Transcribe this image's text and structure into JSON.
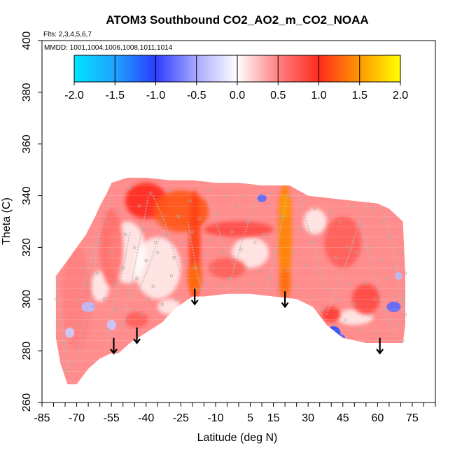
{
  "chart_data": {
    "type": "heatmap",
    "title": "ATOM3 Southbound CO2_AO2_m_CO2_NOAA",
    "subtitle_flights": "Flts: 2,3,4,5,6,7",
    "subtitle_dates": "MMDD: 1001,1004,1006,1008,1011,1014",
    "xlabel": "Latitude (deg N)",
    "ylabel": "Theta (C)",
    "xlim": [
      -85,
      85
    ],
    "ylim": [
      260,
      400
    ],
    "xticks": [
      -85,
      -70,
      -55,
      -40,
      -25,
      -10,
      5,
      15,
      30,
      45,
      60,
      75
    ],
    "xticks_minor": [
      -80,
      -75,
      -65,
      -60,
      -50,
      -45,
      -35,
      -30,
      -20,
      -15,
      -5,
      0,
      10,
      20,
      25,
      35,
      40,
      50,
      55,
      65,
      70,
      80,
      85
    ],
    "yticks": [
      260,
      280,
      300,
      320,
      340,
      360,
      380,
      400
    ],
    "colorbar": {
      "min": -2.0,
      "max": 2.0,
      "tick_labels": [
        "-2.0",
        "-1.5",
        "-1.0",
        "-0.5",
        "0.0",
        "0.5",
        "1.0",
        "1.5",
        "2.0"
      ],
      "tick_values": [
        -2.0,
        -1.5,
        -1.0,
        -0.5,
        0.0,
        0.5,
        1.0,
        1.5,
        2.0
      ],
      "color_stops": [
        {
          "v": -2.0,
          "c": "#00e5ff"
        },
        {
          "v": -1.5,
          "c": "#1fa2ff"
        },
        {
          "v": -1.0,
          "c": "#2a3cff"
        },
        {
          "v": -0.5,
          "c": "#a9a9ff"
        },
        {
          "v": 0.0,
          "c": "#ffffff"
        },
        {
          "v": 0.5,
          "c": "#ff8080"
        },
        {
          "v": 1.0,
          "c": "#ff2a1e"
        },
        {
          "v": 1.5,
          "c": "#ff9a00"
        },
        {
          "v": 2.0,
          "c": "#ffff00"
        }
      ]
    },
    "domain_outline": [
      [
        -79,
        309
      ],
      [
        -74,
        315
      ],
      [
        -70,
        320
      ],
      [
        -66,
        325
      ],
      [
        -62,
        332
      ],
      [
        -60,
        336
      ],
      [
        -57,
        341
      ],
      [
        -55,
        345
      ],
      [
        -48,
        347
      ],
      [
        -40,
        347
      ],
      [
        -30,
        346
      ],
      [
        -20,
        346
      ],
      [
        -10,
        345
      ],
      [
        0,
        345
      ],
      [
        10,
        344
      ],
      [
        22,
        344
      ],
      [
        30,
        340
      ],
      [
        40,
        339
      ],
      [
        50,
        338
      ],
      [
        60,
        337
      ],
      [
        65,
        335
      ],
      [
        71,
        330
      ],
      [
        72,
        310
      ],
      [
        72,
        290
      ],
      [
        71,
        283
      ],
      [
        62,
        283
      ],
      [
        55,
        283
      ],
      [
        45,
        285
      ],
      [
        38,
        290
      ],
      [
        32,
        297
      ],
      [
        25,
        300
      ],
      [
        15,
        301
      ],
      [
        5,
        302
      ],
      [
        -5,
        302
      ],
      [
        -15,
        301
      ],
      [
        -20,
        301
      ],
      [
        -28,
        296
      ],
      [
        -33,
        291
      ],
      [
        -40,
        287
      ],
      [
        -47,
        283
      ],
      [
        -52,
        279
      ],
      [
        -55,
        279
      ],
      [
        -60,
        277
      ],
      [
        -65,
        273
      ],
      [
        -70,
        267
      ],
      [
        -74,
        267
      ],
      [
        -77,
        275
      ],
      [
        -79,
        285
      ]
    ],
    "enhancements": [
      {
        "lat": -40,
        "theta": 338,
        "dlat": 9,
        "dtheta": 7,
        "value": 1.0
      },
      {
        "lat": -25,
        "theta": 334,
        "dlat": 12,
        "dtheta": 8,
        "value": 1.2
      },
      {
        "lat": -19,
        "theta": 320,
        "dlat": 2.5,
        "dtheta": 22,
        "value": 1.1
      },
      {
        "lat": -19,
        "theta": 308,
        "dlat": 3,
        "dtheta": 6,
        "value": 1.3
      },
      {
        "lat": 20,
        "theta": 325,
        "dlat": 3,
        "dtheta": 20,
        "value": 1.4
      },
      {
        "lat": 20,
        "theta": 336,
        "dlat": 2,
        "dtheta": 5,
        "value": 1.5
      },
      {
        "lat": 20,
        "theta": 306,
        "dlat": 2.5,
        "dtheta": 6,
        "value": 1.3
      },
      {
        "lat": 0,
        "theta": 327,
        "dlat": 15,
        "dtheta": 3,
        "value": 0.8
      },
      {
        "lat": 45,
        "theta": 322,
        "dlat": 8,
        "dtheta": 10,
        "value": 0.7
      },
      {
        "lat": -55,
        "theta": 320,
        "dlat": 5,
        "dtheta": 15,
        "value": 0.6
      },
      {
        "lat": -70,
        "theta": 300,
        "dlat": 6,
        "dtheta": 20,
        "value": 0.5
      },
      {
        "lat": 40,
        "theta": 294,
        "dlat": 4,
        "dtheta": 3,
        "value": 0.9
      },
      {
        "lat": 55,
        "theta": 300,
        "dlat": 6,
        "dtheta": 6,
        "value": 0.8
      },
      {
        "lat": -5,
        "theta": 312,
        "dlat": 8,
        "dtheta": 4,
        "value": 0.7
      },
      {
        "lat": -44,
        "theta": 292,
        "dlat": 5,
        "dtheta": 3,
        "value": 0.7
      }
    ],
    "depletions": [
      {
        "lat": 41,
        "theta": 287,
        "dlat": 3,
        "dtheta": 2.5,
        "value": -1.1
      },
      {
        "lat": 44,
        "theta": 285,
        "dlat": 2,
        "dtheta": 1.5,
        "value": -0.8
      },
      {
        "lat": 67,
        "theta": 297,
        "dlat": 3,
        "dtheta": 2,
        "value": -0.8
      },
      {
        "lat": 69,
        "theta": 309,
        "dlat": 1.5,
        "dtheta": 1.5,
        "value": -0.4
      },
      {
        "lat": 10,
        "theta": 339,
        "dlat": 2,
        "dtheta": 1.5,
        "value": -0.8
      },
      {
        "lat": 56,
        "theta": 339,
        "dlat": 2,
        "dtheta": 1.5,
        "value": -0.6
      },
      {
        "lat": -65,
        "theta": 297,
        "dlat": 3,
        "dtheta": 2,
        "value": -0.4
      },
      {
        "lat": -73,
        "theta": 287,
        "dlat": 2,
        "dtheta": 2,
        "value": -0.3
      },
      {
        "lat": -55,
        "theta": 290,
        "dlat": 2,
        "dtheta": 2,
        "value": -0.3
      }
    ],
    "whitish": [
      {
        "lat": -48,
        "theta": 318,
        "dlat": 8,
        "dtheta": 12
      },
      {
        "lat": -35,
        "theta": 312,
        "dlat": 10,
        "dtheta": 12
      },
      {
        "lat": 5,
        "theta": 318,
        "dlat": 8,
        "dtheta": 6
      },
      {
        "lat": 33,
        "theta": 330,
        "dlat": 5,
        "dtheta": 5
      },
      {
        "lat": 50,
        "theta": 293,
        "dlat": 8,
        "dtheta": 3
      },
      {
        "lat": -60,
        "theta": 305,
        "dlat": 4,
        "dtheta": 6
      },
      {
        "lat": -30,
        "theta": 297,
        "dlat": 5,
        "dtheta": 3
      }
    ],
    "arrows": [
      {
        "lat": -54,
        "theta_top": 285,
        "theta_bottom": 279
      },
      {
        "lat": -44,
        "theta_top": 289,
        "theta_bottom": 283
      },
      {
        "lat": -19,
        "theta_top": 304,
        "theta_bottom": 298
      },
      {
        "lat": 20,
        "theta_top": 303,
        "theta_bottom": 297
      },
      {
        "lat": 61,
        "theta_top": 285,
        "theta_bottom": 279
      }
    ],
    "flight_tracks": [
      {
        "points": [
          [
            -79,
            309
          ],
          [
            -77,
            295
          ],
          [
            -75,
            281
          ],
          [
            -73,
            272
          ]
        ]
      },
      {
        "points": [
          [
            -70,
            277
          ],
          [
            -67,
            290
          ],
          [
            -64,
            302
          ],
          [
            -62,
            315
          ],
          [
            -60,
            326
          ]
        ]
      },
      {
        "points": [
          [
            -68,
            302
          ],
          [
            -65,
            312
          ],
          [
            -62,
            321
          ],
          [
            -58,
            331
          ],
          [
            -55,
            341
          ]
        ]
      },
      {
        "points": [
          [
            -57,
            283
          ],
          [
            -55,
            294
          ],
          [
            -52,
            305
          ],
          [
            -49,
            316
          ],
          [
            -47,
            326
          ]
        ]
      },
      {
        "points": [
          [
            -50,
            290
          ],
          [
            -47,
            303
          ],
          [
            -44,
            317
          ],
          [
            -41,
            330
          ],
          [
            -39,
            340
          ]
        ]
      },
      {
        "points": [
          [
            -45,
            300
          ],
          [
            -40,
            310
          ],
          [
            -36,
            320
          ],
          [
            -32,
            327
          ]
        ]
      },
      {
        "points": [
          [
            -37,
            340
          ],
          [
            -32,
            330
          ],
          [
            -28,
            318
          ],
          [
            -25,
            310
          ]
        ]
      },
      {
        "points": [
          [
            -22,
            330
          ],
          [
            -20,
            320
          ],
          [
            -18,
            310
          ],
          [
            -16,
            303
          ]
        ]
      },
      {
        "points": [
          [
            -14,
            340
          ],
          [
            -10,
            330
          ],
          [
            -6,
            320
          ],
          [
            -2,
            313
          ]
        ]
      },
      {
        "points": [
          [
            -5,
            303
          ],
          [
            0,
            318
          ],
          [
            5,
            332
          ],
          [
            9,
            342
          ]
        ]
      },
      {
        "points": [
          [
            12,
            303
          ],
          [
            15,
            315
          ],
          [
            18,
            327
          ],
          [
            21,
            341
          ]
        ]
      },
      {
        "points": [
          [
            26,
            340
          ],
          [
            30,
            328
          ],
          [
            34,
            316
          ],
          [
            37,
            304
          ]
        ]
      },
      {
        "points": [
          [
            38,
            294
          ],
          [
            43,
            306
          ],
          [
            48,
            318
          ],
          [
            52,
            330
          ],
          [
            56,
            338
          ]
        ]
      },
      {
        "points": [
          [
            52,
            330
          ],
          [
            56,
            318
          ],
          [
            60,
            305
          ],
          [
            64,
            293
          ],
          [
            68,
            285
          ]
        ]
      },
      {
        "points": [
          [
            62,
            336
          ],
          [
            66,
            322
          ],
          [
            69,
            308
          ],
          [
            71,
            295
          ]
        ]
      }
    ],
    "scatter_points": [
      [
        -79,
        300
      ],
      [
        -78,
        290
      ],
      [
        -76,
        283
      ],
      [
        -75,
        272
      ],
      [
        -72,
        275
      ],
      [
        -70,
        290
      ],
      [
        -69,
        300
      ],
      [
        -68,
        312
      ],
      [
        -66,
        306
      ],
      [
        -64,
        318
      ],
      [
        -63,
        297
      ],
      [
        -61,
        310
      ],
      [
        -60,
        322
      ],
      [
        -59,
        314
      ],
      [
        -58,
        300
      ],
      [
        -57,
        330
      ],
      [
        -56,
        288
      ],
      [
        -55,
        318
      ],
      [
        -54,
        306
      ],
      [
        -53,
        296
      ],
      [
        -52,
        334
      ],
      [
        -51,
        290
      ],
      [
        -50,
        312
      ],
      [
        -49,
        325
      ],
      [
        -48,
        302
      ],
      [
        -47,
        343
      ],
      [
        -46,
        296
      ],
      [
        -45,
        320
      ],
      [
        -44,
        308
      ],
      [
        -43,
        336
      ],
      [
        -42,
        294
      ],
      [
        -41,
        327
      ],
      [
        -40,
        315
      ],
      [
        -39,
        300
      ],
      [
        -38,
        341
      ],
      [
        -37,
        305
      ],
      [
        -36,
        322
      ],
      [
        -35,
        318
      ],
      [
        -34,
        330
      ],
      [
        -33,
        298
      ],
      [
        -31,
        325
      ],
      [
        -30,
        342
      ],
      [
        -29,
        309
      ],
      [
        -28,
        316
      ],
      [
        -27,
        300
      ],
      [
        -26,
        332
      ],
      [
        -24,
        322
      ],
      [
        -23,
        314
      ],
      [
        -21,
        338
      ],
      [
        -20,
        326
      ],
      [
        -19,
        312
      ],
      [
        -18,
        304
      ],
      [
        -17,
        331
      ],
      [
        -15,
        317
      ],
      [
        -14,
        306
      ],
      [
        -13,
        342
      ],
      [
        -12,
        323
      ],
      [
        -11,
        312
      ],
      [
        -9,
        333
      ],
      [
        -8,
        305
      ],
      [
        -7,
        318
      ],
      [
        -6,
        340
      ],
      [
        -4,
        308
      ],
      [
        -3,
        326
      ],
      [
        -1,
        336
      ],
      [
        0,
        304
      ],
      [
        1,
        319
      ],
      [
        2,
        340
      ],
      [
        3,
        312
      ],
      [
        4,
        330
      ],
      [
        6,
        306
      ],
      [
        7,
        322
      ],
      [
        8,
        338
      ],
      [
        9,
        311
      ],
      [
        11,
        325
      ],
      [
        13,
        308
      ],
      [
        14,
        341
      ],
      [
        16,
        318
      ],
      [
        17,
        306
      ],
      [
        19,
        332
      ],
      [
        21,
        311
      ],
      [
        22,
        340
      ],
      [
        24,
        318
      ],
      [
        25,
        305
      ],
      [
        27,
        327
      ],
      [
        28,
        338
      ],
      [
        29,
        313
      ],
      [
        31,
        301
      ],
      [
        32,
        322
      ],
      [
        33,
        335
      ],
      [
        35,
        310
      ],
      [
        36,
        296
      ],
      [
        38,
        326
      ],
      [
        39,
        304
      ],
      [
        40,
        334
      ],
      [
        41,
        290
      ],
      [
        42,
        316
      ],
      [
        43,
        300
      ],
      [
        44,
        330
      ],
      [
        46,
        292
      ],
      [
        47,
        320
      ],
      [
        48,
        306
      ],
      [
        49,
        336
      ],
      [
        50,
        298
      ],
      [
        51,
        318
      ],
      [
        52,
        288
      ],
      [
        53,
        328
      ],
      [
        55,
        306
      ],
      [
        56,
        294
      ],
      [
        57,
        320
      ],
      [
        58,
        335
      ],
      [
        59,
        300
      ],
      [
        60,
        287
      ],
      [
        61,
        315
      ],
      [
        62,
        330
      ],
      [
        63,
        296
      ],
      [
        64,
        308
      ],
      [
        65,
        324
      ],
      [
        66,
        292
      ],
      [
        67,
        312
      ],
      [
        68,
        301
      ],
      [
        69,
        290
      ],
      [
        70,
        318
      ],
      [
        71,
        284
      ],
      [
        71,
        300
      ],
      [
        72,
        310
      ],
      [
        72,
        294
      ]
    ]
  }
}
